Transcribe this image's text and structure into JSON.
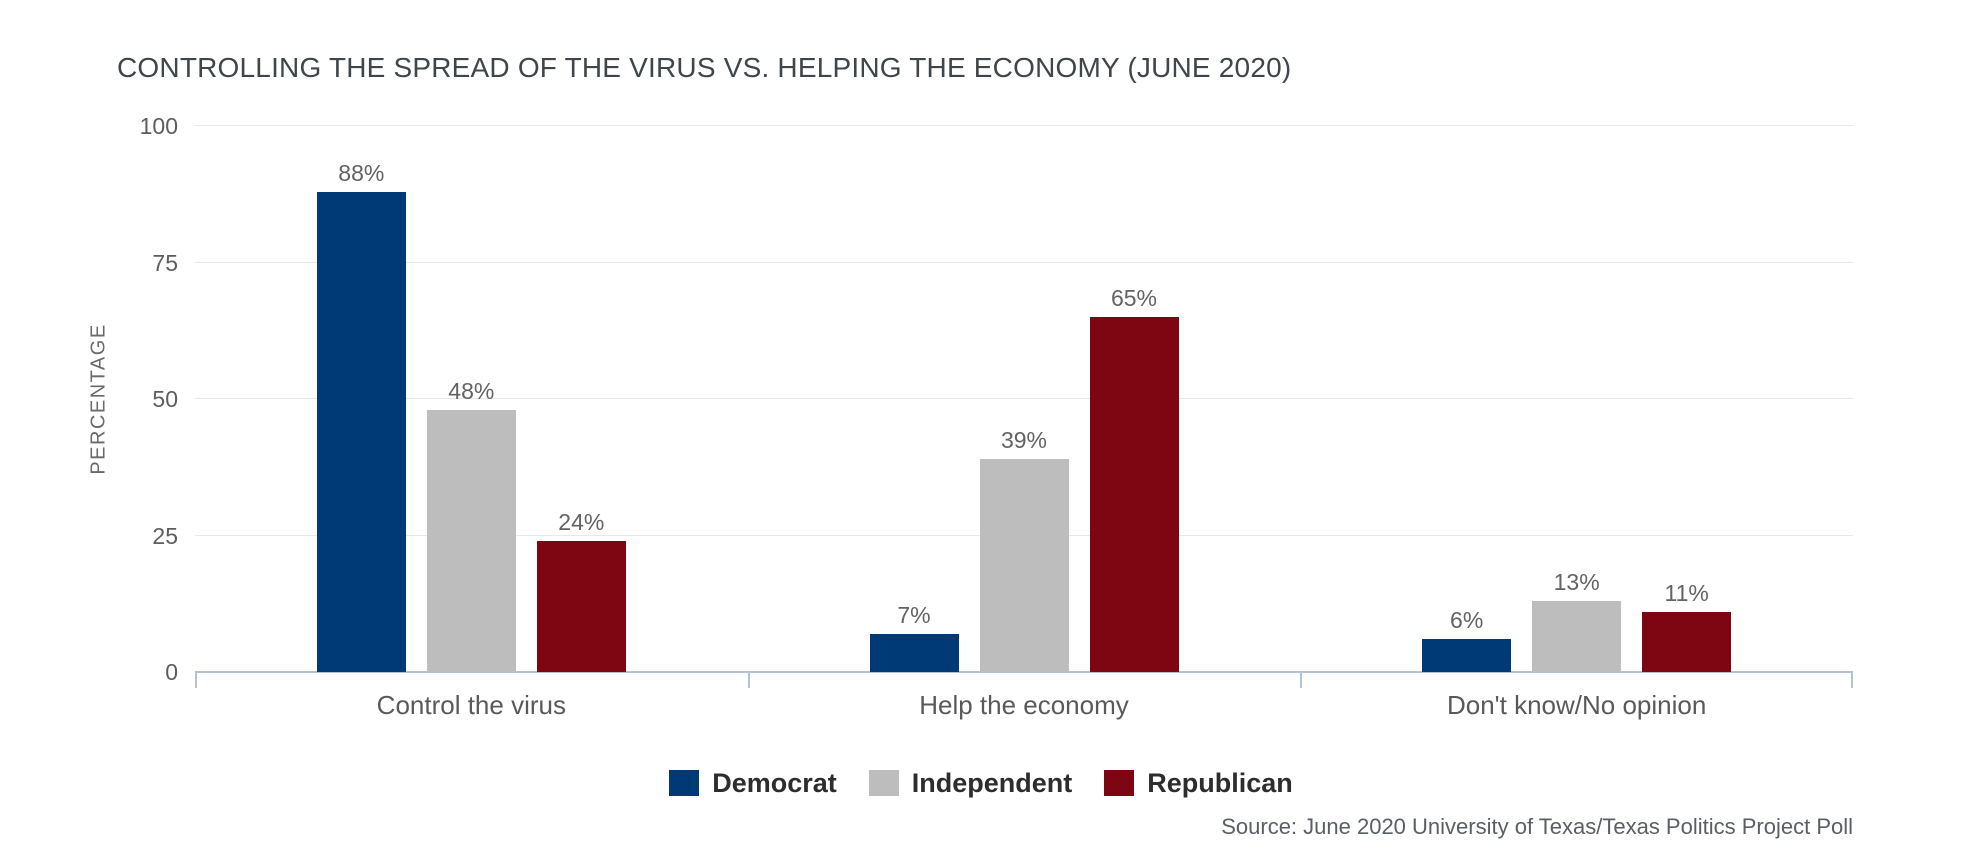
{
  "source_note": "Source: June 2020 University of Texas/Texas Politics Project Poll",
  "colors": {
    "axis_line": "#b3c3d3",
    "gridline": "#e8e8e8",
    "title_text": "#3e464c",
    "tick_text": "#5d5d5d",
    "value_label_text": "#636363",
    "category_text": "#595959",
    "legend_text": "#2d2d2d",
    "source_text": "#5a5f64"
  },
  "chart_data": {
    "type": "bar",
    "title": "CONTROLLING THE SPREAD OF THE VIRUS VS. HELPING THE ECONOMY (JUNE 2020)",
    "xlabel": "",
    "ylabel": "PERCENTAGE",
    "categories": [
      "Control the virus",
      "Help the economy",
      "Don't know/No opinion"
    ],
    "series": [
      {
        "name": "Democrat",
        "color": "#003a76",
        "values": [
          88,
          7,
          6
        ]
      },
      {
        "name": "Independent",
        "color": "#bdbdbd",
        "values": [
          48,
          39,
          13
        ]
      },
      {
        "name": "Republican",
        "color": "#7e0612",
        "values": [
          24,
          65,
          11
        ]
      }
    ],
    "ylim": [
      0,
      100
    ],
    "yticks": [
      0,
      25,
      50,
      75,
      100
    ],
    "value_label_format": "{v}%",
    "grid": true,
    "legend_position": "bottom"
  }
}
